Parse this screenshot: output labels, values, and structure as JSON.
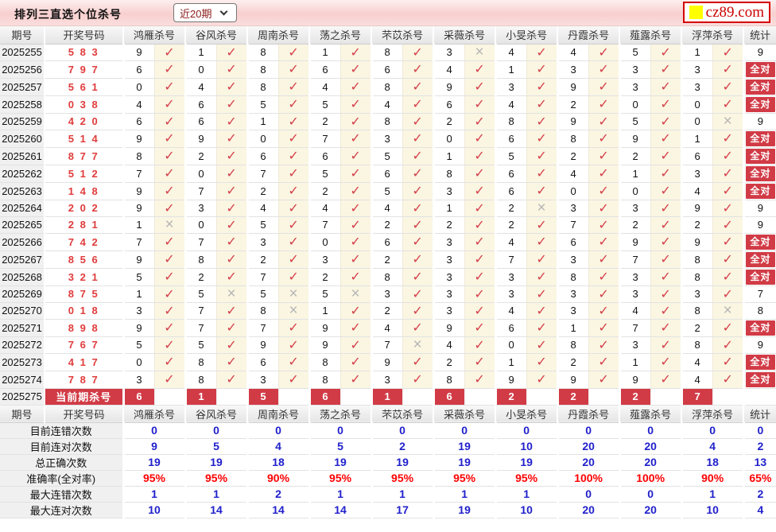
{
  "topbar": {
    "title": "排列三直选个位杀号",
    "range_select": {
      "value": "近20期"
    },
    "logo_text": "cz89.com"
  },
  "icons": {
    "check": "✓",
    "cross": "×",
    "chevron_down": "chevron-down"
  },
  "colors": {
    "accent_red": "#d13b46",
    "check_red": "#d6404b",
    "cross_gray": "#b5b5b5",
    "draw_number_red": "#e03c3c",
    "summary_blue": "#2121cc",
    "percent_red": "#ff0000",
    "logo_red": "#cc0000",
    "logo_yellow": "#ffff00",
    "check_cell_bg": "#faf6e2"
  },
  "table": {
    "header": {
      "period": "期号",
      "numbers": "开奖号码",
      "kills": [
        "鸿雁杀号",
        "谷风杀号",
        "周南杀号",
        "荡之杀号",
        "芣苡杀号",
        "采薇杀号",
        "小旻杀号",
        "丹霞杀号",
        "薤露杀号",
        "浮萍杀号"
      ],
      "stat": "统计"
    },
    "all_correct_label": "全对",
    "rows": [
      {
        "period": "2025255",
        "numbers": "5 8 3",
        "kills": [
          [
            "9",
            1
          ],
          [
            "1",
            1
          ],
          [
            "8",
            1
          ],
          [
            "1",
            1
          ],
          [
            "8",
            1
          ],
          [
            "3",
            0
          ],
          [
            "4",
            1
          ],
          [
            "4",
            1
          ],
          [
            "5",
            1
          ],
          [
            "1",
            1
          ]
        ],
        "stat": "9"
      },
      {
        "period": "2025256",
        "numbers": "7 9 7",
        "kills": [
          [
            "6",
            1
          ],
          [
            "0",
            1
          ],
          [
            "8",
            1
          ],
          [
            "6",
            1
          ],
          [
            "6",
            1
          ],
          [
            "4",
            1
          ],
          [
            "1",
            1
          ],
          [
            "3",
            1
          ],
          [
            "3",
            1
          ],
          [
            "3",
            1
          ]
        ],
        "stat": "全对"
      },
      {
        "period": "2025257",
        "numbers": "5 6 1",
        "kills": [
          [
            "0",
            1
          ],
          [
            "4",
            1
          ],
          [
            "8",
            1
          ],
          [
            "4",
            1
          ],
          [
            "8",
            1
          ],
          [
            "9",
            1
          ],
          [
            "3",
            1
          ],
          [
            "9",
            1
          ],
          [
            "3",
            1
          ],
          [
            "3",
            1
          ]
        ],
        "stat": "全对"
      },
      {
        "period": "2025258",
        "numbers": "0 3 8",
        "kills": [
          [
            "4",
            1
          ],
          [
            "6",
            1
          ],
          [
            "5",
            1
          ],
          [
            "5",
            1
          ],
          [
            "4",
            1
          ],
          [
            "6",
            1
          ],
          [
            "4",
            1
          ],
          [
            "2",
            1
          ],
          [
            "0",
            1
          ],
          [
            "0",
            1
          ]
        ],
        "stat": "全对"
      },
      {
        "period": "2025259",
        "numbers": "4 2 0",
        "kills": [
          [
            "6",
            1
          ],
          [
            "6",
            1
          ],
          [
            "1",
            1
          ],
          [
            "2",
            1
          ],
          [
            "8",
            1
          ],
          [
            "2",
            1
          ],
          [
            "8",
            1
          ],
          [
            "9",
            1
          ],
          [
            "5",
            1
          ],
          [
            "0",
            0
          ]
        ],
        "stat": "9"
      },
      {
        "period": "2025260",
        "numbers": "5 1 4",
        "kills": [
          [
            "9",
            1
          ],
          [
            "9",
            1
          ],
          [
            "0",
            1
          ],
          [
            "7",
            1
          ],
          [
            "3",
            1
          ],
          [
            "0",
            1
          ],
          [
            "6",
            1
          ],
          [
            "8",
            1
          ],
          [
            "9",
            1
          ],
          [
            "1",
            1
          ]
        ],
        "stat": "全对"
      },
      {
        "period": "2025261",
        "numbers": "8 7 7",
        "kills": [
          [
            "8",
            1
          ],
          [
            "2",
            1
          ],
          [
            "6",
            1
          ],
          [
            "6",
            1
          ],
          [
            "5",
            1
          ],
          [
            "1",
            1
          ],
          [
            "5",
            1
          ],
          [
            "2",
            1
          ],
          [
            "2",
            1
          ],
          [
            "6",
            1
          ]
        ],
        "stat": "全对"
      },
      {
        "period": "2025262",
        "numbers": "5 1 2",
        "kills": [
          [
            "7",
            1
          ],
          [
            "0",
            1
          ],
          [
            "7",
            1
          ],
          [
            "5",
            1
          ],
          [
            "6",
            1
          ],
          [
            "8",
            1
          ],
          [
            "6",
            1
          ],
          [
            "4",
            1
          ],
          [
            "1",
            1
          ],
          [
            "3",
            1
          ]
        ],
        "stat": "全对"
      },
      {
        "period": "2025263",
        "numbers": "1 4 8",
        "kills": [
          [
            "9",
            1
          ],
          [
            "7",
            1
          ],
          [
            "2",
            1
          ],
          [
            "2",
            1
          ],
          [
            "5",
            1
          ],
          [
            "3",
            1
          ],
          [
            "6",
            1
          ],
          [
            "0",
            1
          ],
          [
            "0",
            1
          ],
          [
            "4",
            1
          ]
        ],
        "stat": "全对"
      },
      {
        "period": "2025264",
        "numbers": "2 0 2",
        "kills": [
          [
            "9",
            1
          ],
          [
            "3",
            1
          ],
          [
            "4",
            1
          ],
          [
            "4",
            1
          ],
          [
            "4",
            1
          ],
          [
            "1",
            1
          ],
          [
            "2",
            0
          ],
          [
            "3",
            1
          ],
          [
            "3",
            1
          ],
          [
            "9",
            1
          ]
        ],
        "stat": "9"
      },
      {
        "period": "2025265",
        "numbers": "2 8 1",
        "kills": [
          [
            "1",
            0
          ],
          [
            "0",
            1
          ],
          [
            "5",
            1
          ],
          [
            "7",
            1
          ],
          [
            "2",
            1
          ],
          [
            "2",
            1
          ],
          [
            "2",
            1
          ],
          [
            "7",
            1
          ],
          [
            "2",
            1
          ],
          [
            "2",
            1
          ]
        ],
        "stat": "9"
      },
      {
        "period": "2025266",
        "numbers": "7 4 2",
        "kills": [
          [
            "7",
            1
          ],
          [
            "7",
            1
          ],
          [
            "3",
            1
          ],
          [
            "0",
            1
          ],
          [
            "6",
            1
          ],
          [
            "3",
            1
          ],
          [
            "4",
            1
          ],
          [
            "6",
            1
          ],
          [
            "9",
            1
          ],
          [
            "9",
            1
          ]
        ],
        "stat": "全对"
      },
      {
        "period": "2025267",
        "numbers": "8 5 6",
        "kills": [
          [
            "9",
            1
          ],
          [
            "8",
            1
          ],
          [
            "2",
            1
          ],
          [
            "3",
            1
          ],
          [
            "2",
            1
          ],
          [
            "3",
            1
          ],
          [
            "7",
            1
          ],
          [
            "3",
            1
          ],
          [
            "7",
            1
          ],
          [
            "8",
            1
          ]
        ],
        "stat": "全对"
      },
      {
        "period": "2025268",
        "numbers": "3 2 1",
        "kills": [
          [
            "5",
            1
          ],
          [
            "2",
            1
          ],
          [
            "7",
            1
          ],
          [
            "2",
            1
          ],
          [
            "8",
            1
          ],
          [
            "3",
            1
          ],
          [
            "3",
            1
          ],
          [
            "8",
            1
          ],
          [
            "3",
            1
          ],
          [
            "8",
            1
          ]
        ],
        "stat": "全对"
      },
      {
        "period": "2025269",
        "numbers": "8 7 5",
        "kills": [
          [
            "1",
            1
          ],
          [
            "5",
            0
          ],
          [
            "5",
            0
          ],
          [
            "5",
            0
          ],
          [
            "3",
            1
          ],
          [
            "3",
            1
          ],
          [
            "3",
            1
          ],
          [
            "3",
            1
          ],
          [
            "3",
            1
          ],
          [
            "3",
            1
          ]
        ],
        "stat": "7"
      },
      {
        "period": "2025270",
        "numbers": "0 1 8",
        "kills": [
          [
            "3",
            1
          ],
          [
            "7",
            1
          ],
          [
            "8",
            0
          ],
          [
            "1",
            1
          ],
          [
            "2",
            1
          ],
          [
            "3",
            1
          ],
          [
            "4",
            1
          ],
          [
            "3",
            1
          ],
          [
            "4",
            1
          ],
          [
            "8",
            0
          ]
        ],
        "stat": "8"
      },
      {
        "period": "2025271",
        "numbers": "8 9 8",
        "kills": [
          [
            "9",
            1
          ],
          [
            "7",
            1
          ],
          [
            "7",
            1
          ],
          [
            "9",
            1
          ],
          [
            "4",
            1
          ],
          [
            "9",
            1
          ],
          [
            "6",
            1
          ],
          [
            "1",
            1
          ],
          [
            "7",
            1
          ],
          [
            "2",
            1
          ]
        ],
        "stat": "全对"
      },
      {
        "period": "2025272",
        "numbers": "7 6 7",
        "kills": [
          [
            "5",
            1
          ],
          [
            "5",
            1
          ],
          [
            "9",
            1
          ],
          [
            "9",
            1
          ],
          [
            "7",
            0
          ],
          [
            "4",
            1
          ],
          [
            "0",
            1
          ],
          [
            "8",
            1
          ],
          [
            "3",
            1
          ],
          [
            "8",
            1
          ]
        ],
        "stat": "9"
      },
      {
        "period": "2025273",
        "numbers": "4 1 7",
        "kills": [
          [
            "0",
            1
          ],
          [
            "8",
            1
          ],
          [
            "6",
            1
          ],
          [
            "8",
            1
          ],
          [
            "9",
            1
          ],
          [
            "2",
            1
          ],
          [
            "1",
            1
          ],
          [
            "2",
            1
          ],
          [
            "1",
            1
          ],
          [
            "4",
            1
          ]
        ],
        "stat": "全对"
      },
      {
        "period": "2025274",
        "numbers": "7 8 7",
        "kills": [
          [
            "3",
            1
          ],
          [
            "8",
            1
          ],
          [
            "3",
            1
          ],
          [
            "8",
            1
          ],
          [
            "3",
            1
          ],
          [
            "8",
            1
          ],
          [
            "9",
            1
          ],
          [
            "9",
            1
          ],
          [
            "9",
            1
          ],
          [
            "4",
            1
          ]
        ],
        "stat": "全对"
      }
    ],
    "current": {
      "period": "2025275",
      "label": "当前期杀号",
      "kills": [
        "6",
        "1",
        "5",
        "6",
        "1",
        "6",
        "2",
        "2",
        "2",
        "7"
      ],
      "stat": ""
    }
  },
  "summary": {
    "rows": [
      {
        "label": "目前连错次数",
        "values": [
          "0",
          "0",
          "0",
          "0",
          "0",
          "0",
          "0",
          "0",
          "0",
          "0"
        ],
        "stat": "0",
        "style": "blue"
      },
      {
        "label": "目前连对次数",
        "values": [
          "9",
          "5",
          "4",
          "5",
          "2",
          "19",
          "10",
          "20",
          "20",
          "4"
        ],
        "stat": "2",
        "style": "blue"
      },
      {
        "label": "总正确次数",
        "values": [
          "19",
          "19",
          "18",
          "19",
          "19",
          "19",
          "19",
          "20",
          "20",
          "18"
        ],
        "stat": "13",
        "style": "blue"
      },
      {
        "label": "准确率(全对率)",
        "values": [
          "95%",
          "95%",
          "90%",
          "95%",
          "95%",
          "95%",
          "95%",
          "100%",
          "100%",
          "90%"
        ],
        "stat": "65%",
        "style": "red"
      },
      {
        "label": "最大连错次数",
        "values": [
          "1",
          "1",
          "2",
          "1",
          "1",
          "1",
          "1",
          "0",
          "0",
          "1"
        ],
        "stat": "2",
        "style": "blue"
      },
      {
        "label": "最大连对次数",
        "values": [
          "10",
          "14",
          "14",
          "14",
          "17",
          "19",
          "10",
          "20",
          "20",
          "10"
        ],
        "stat": "4",
        "style": "blue"
      }
    ]
  }
}
